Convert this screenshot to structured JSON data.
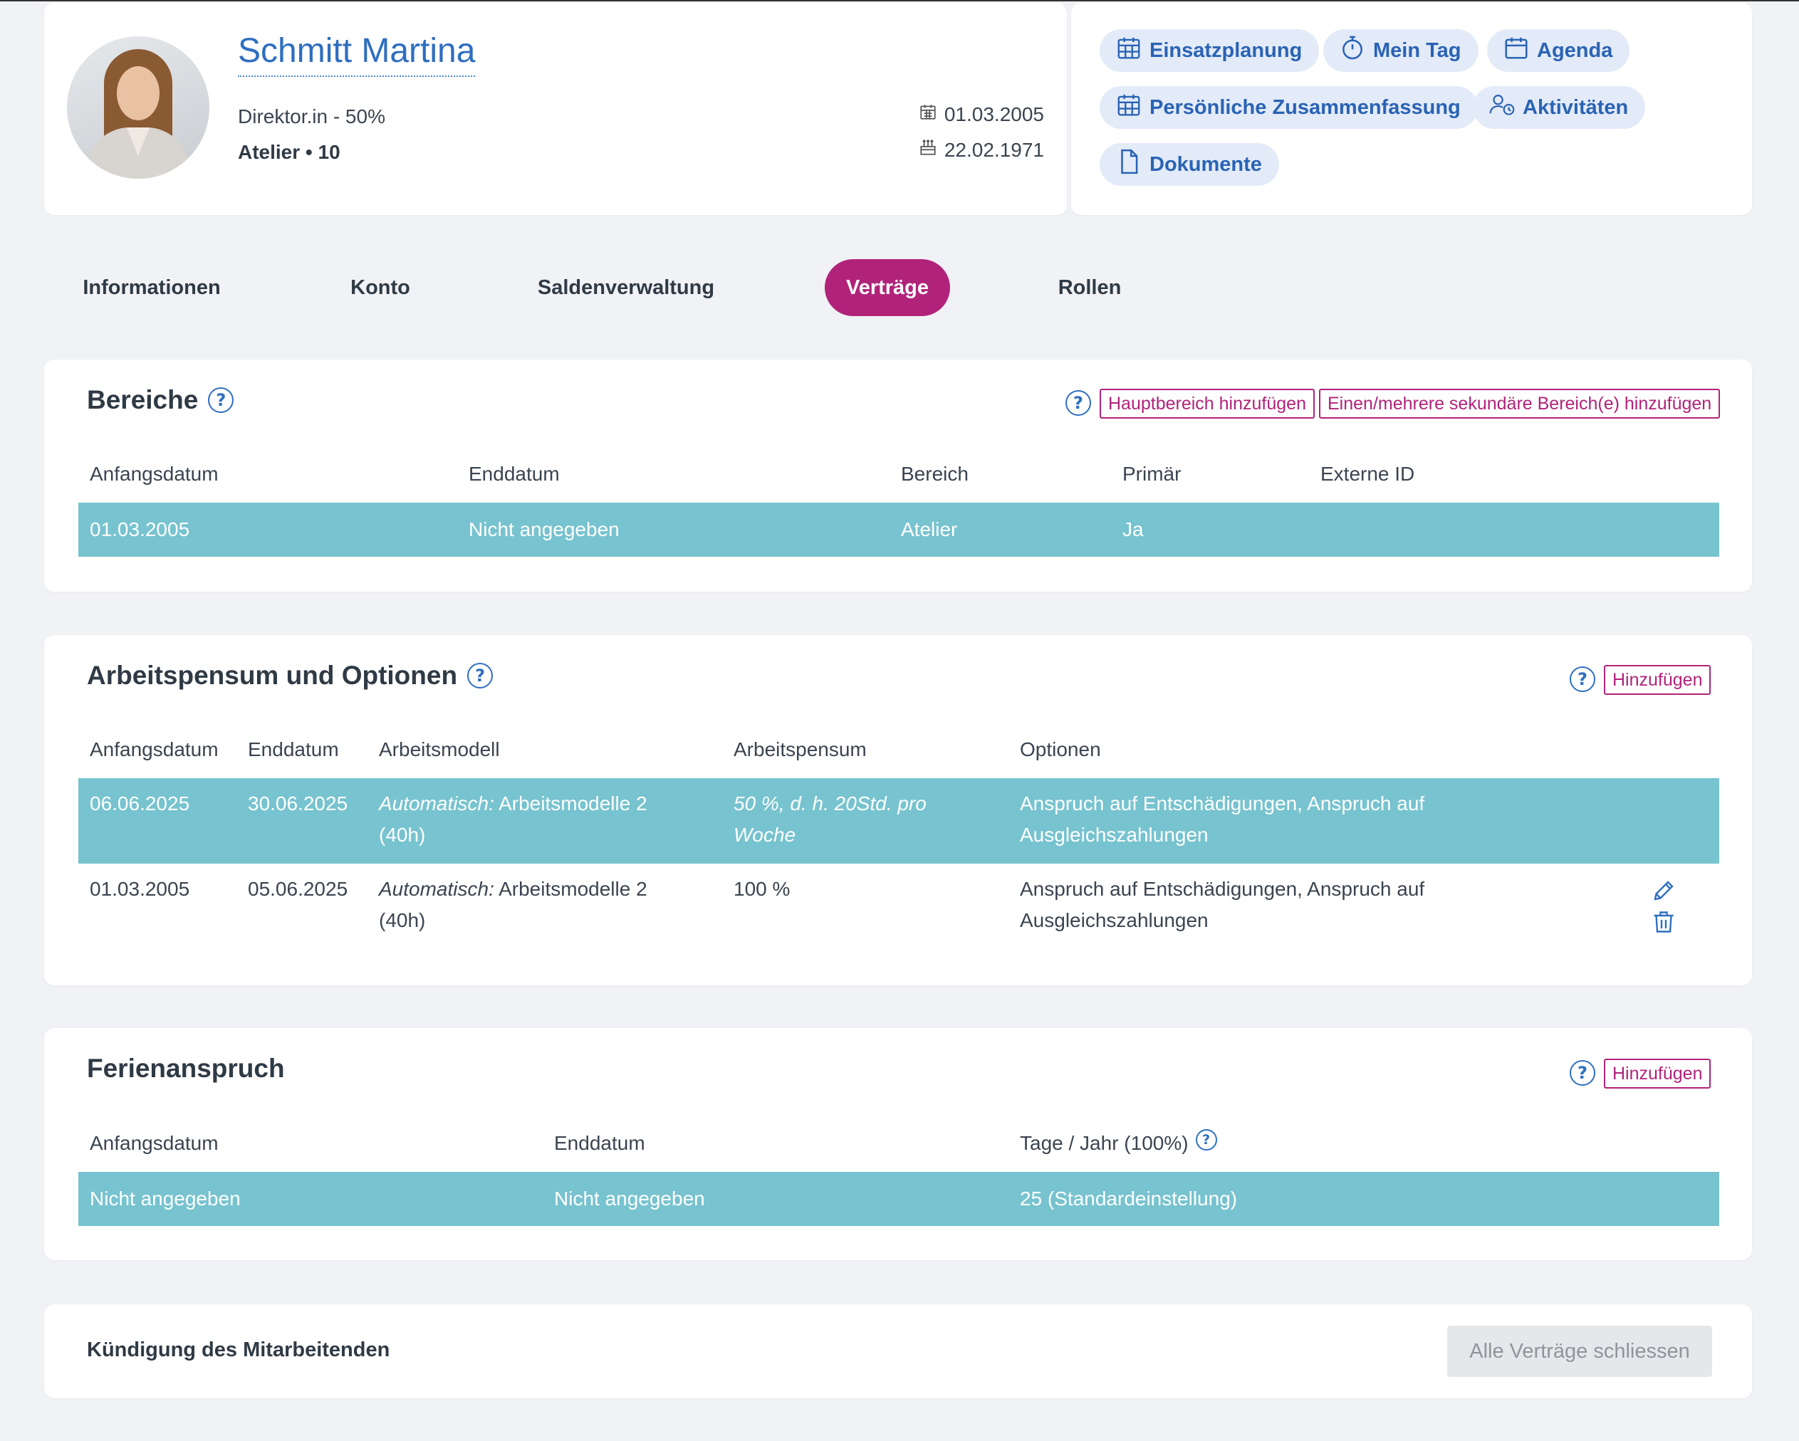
{
  "profile": {
    "name": "Schmitt Martina",
    "role": "Direktor.in - 50%",
    "location": "Atelier • 10",
    "entry_date": "01.03.2005",
    "birth_date": "22.02.1971"
  },
  "quick_links": {
    "einsatzplanung": "Einsatzplanung",
    "mein_tag": "Mein Tag",
    "agenda": "Agenda",
    "zusammenfassung": "Persönliche Zusammenfassung",
    "aktivitaeten": "Aktivitäten",
    "dokumente": "Dokumente"
  },
  "tabs": [
    "Informationen",
    "Konto",
    "Saldenverwaltung",
    "Verträge",
    "Rollen"
  ],
  "bereiche": {
    "title": "Bereiche",
    "add_main": "Hauptbereich hinzufügen",
    "add_secondary": "Einen/mehrere sekundäre Bereich(e) hinzufügen",
    "headers": [
      "Anfangsdatum",
      "Enddatum",
      "Bereich",
      "Primär",
      "Externe ID"
    ],
    "rows": [
      [
        "01.03.2005",
        "Nicht angegeben",
        "Atelier",
        "Ja",
        ""
      ]
    ]
  },
  "arbeitspensum": {
    "title": "Arbeitspensum und Optionen",
    "add": "Hinzufügen",
    "headers": [
      "Anfangsdatum",
      "Enddatum",
      "Arbeitsmodell",
      "Arbeitspensum",
      "Optionen"
    ],
    "model_prefix": "Automatisch:",
    "rows": [
      {
        "start": "06.06.2025",
        "end": "30.06.2025",
        "model_line1": "Arbeitsmodelle 2",
        "model_line2": "(40h)",
        "pensum_line1": "50 %, d. h. 20Std. pro",
        "pensum_line2": "Woche",
        "options_line1": "Anspruch auf Entschädigungen, Anspruch auf",
        "options_line2": "Ausgleichszahlungen"
      },
      {
        "start": "01.03.2005",
        "end": "05.06.2025",
        "model_line1": "Arbeitsmodelle 2",
        "model_line2": "(40h)",
        "pensum_line1": "100 %",
        "pensum_line2": "",
        "options_line1": "Anspruch auf Entschädigungen, Anspruch auf",
        "options_line2": "Ausgleichszahlungen"
      }
    ]
  },
  "ferien": {
    "title": "Ferienanspruch",
    "add": "Hinzufügen",
    "headers": [
      "Anfangsdatum",
      "Enddatum",
      "Tage / Jahr (100%)"
    ],
    "rows": [
      [
        "Nicht angegeben",
        "Nicht angegeben",
        "25 (Standardeinstellung)"
      ]
    ]
  },
  "kuendigung": {
    "label": "Kündigung des Mitarbeitenden",
    "close_all": "Alle Verträge schliessen"
  },
  "colors": {
    "accent": "#b1237a",
    "link_blue": "#2e6ec0",
    "row_highlight": "#77c3cf",
    "background": "#f1f2f6"
  }
}
